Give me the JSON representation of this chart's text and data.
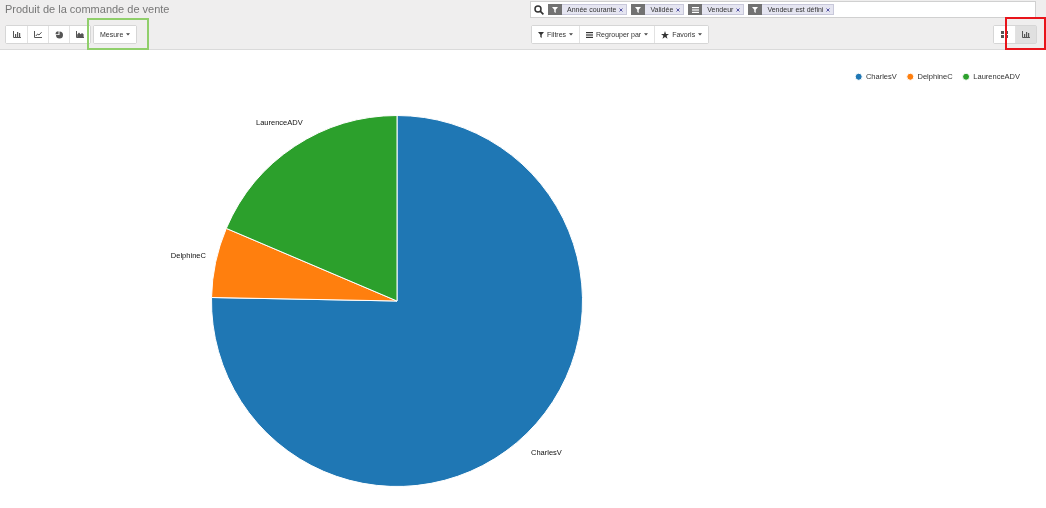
{
  "chart_data": {
    "type": "pie",
    "title": "Produit de la commande de vente",
    "categories": [
      "CharlesV",
      "DelphineC",
      "LaurenceADV"
    ],
    "values": [
      75.3,
      6.1,
      18.6
    ],
    "colors": [
      "#1f77b4",
      "#ff7f0e",
      "#2ca02c"
    ],
    "legend": "top right",
    "annotations": [
      "Mesure",
      "Filtres",
      "Regrouper par",
      "Favoris",
      "Année courante",
      "Validée",
      "Vendeur",
      "Vendeur est défini"
    ]
  }
}
